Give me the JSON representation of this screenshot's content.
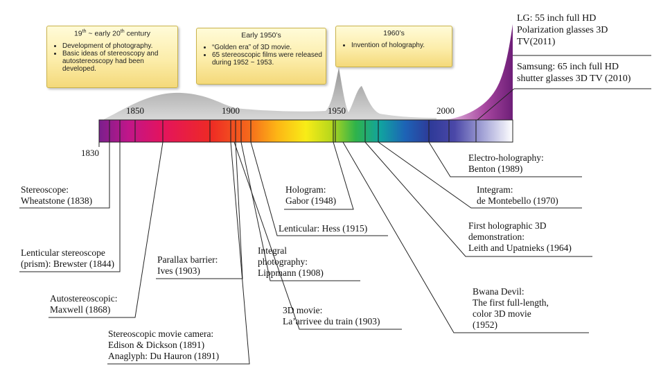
{
  "axis_years": {
    "y1830": "1830",
    "y1850": "1850",
    "y1900": "1900",
    "y1950": "1950",
    "y2000": "2000"
  },
  "eras": [
    {
      "title_main": "19",
      "title_sup": "th",
      "title_rest": " ~ early 20",
      "title_sup2": "th",
      "title_end": " century",
      "bullets": [
        "Development of photography.",
        "Basic ideas of stereoscopy and autostereoscopy had been developed."
      ]
    },
    {
      "title": "Early 1950’s",
      "bullets": [
        "“Golden era” of 3D movie.",
        "65 stereoscopic films were released during 1952 ~ 1953."
      ]
    },
    {
      "title": "1960’s",
      "bullets": [
        "Invention of holography."
      ]
    }
  ],
  "tv_notes": {
    "lg": [
      "LG: 55 inch full HD",
      "Polarization glasses 3D",
      "TV(2011)"
    ],
    "samsung": [
      "Samsung: 65 inch full HD",
      "shutter glasses 3D TV (2010)"
    ]
  },
  "events": {
    "stereoscope": [
      "Stereoscope:",
      "Wheatstone (1838)"
    ],
    "lenticular_stereoscope": [
      "Lenticular stereoscope",
      "(prism): Brewster (1844)"
    ],
    "autostereoscopic": [
      "Autostereoscopic:",
      "Maxwell (1868)"
    ],
    "movie_camera": [
      "Stereoscopic movie camera:",
      "Edison & Dickson (1891)",
      "Anaglyph: Du Hauron (1891)"
    ],
    "parallax_barrier": [
      "Parallax barrier:",
      "Ives (1903)"
    ],
    "movie_1903": [
      "3D movie:",
      "La’arrivee du train (1903)"
    ],
    "integral_photography": [
      "Integral",
      "photography:",
      "Lippmann (1908)"
    ],
    "lenticular_hess": [
      "Lenticular:  Hess (1915)"
    ],
    "hologram": [
      "Hologram:",
      "Gabor (1948)"
    ],
    "bwana_devil": [
      "Bwana Devil:",
      "The first full-length,",
      "color 3D movie",
      "(1952)"
    ],
    "first_holographic": [
      "First holographic 3D",
      "demonstration:",
      "Leith and Upatnieks (1964)"
    ],
    "integram": [
      "Integram:",
      "de Montebello (1970)"
    ],
    "electro_holography": [
      "Electro-holography:",
      "Benton (1989)"
    ]
  }
}
